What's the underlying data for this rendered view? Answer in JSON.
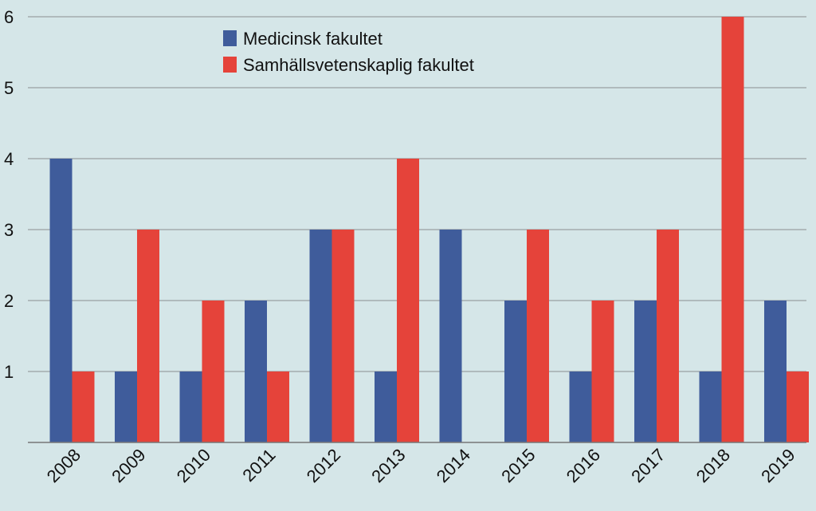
{
  "chart_data": {
    "type": "bar",
    "categories": [
      "2008",
      "2009",
      "2010",
      "2011",
      "2012",
      "2013",
      "2014",
      "2015",
      "2016",
      "2017",
      "2018",
      "2019"
    ],
    "series": [
      {
        "name": "Medicinsk fakultet",
        "color": "#3f5c9b",
        "values": [
          4,
          1,
          1,
          2,
          3,
          1,
          3,
          2,
          1,
          2,
          1,
          2
        ]
      },
      {
        "name": "Samhällsvetenskaplig fakultet",
        "color": "#e5433a",
        "values": [
          1,
          3,
          2,
          1,
          3,
          4,
          0,
          3,
          2,
          3,
          6,
          1
        ]
      }
    ],
    "yticks": [
      "1",
      "2",
      "3",
      "4",
      "5",
      "6"
    ],
    "ylim": [
      0,
      6
    ],
    "grid": true,
    "legend": "top-center"
  }
}
